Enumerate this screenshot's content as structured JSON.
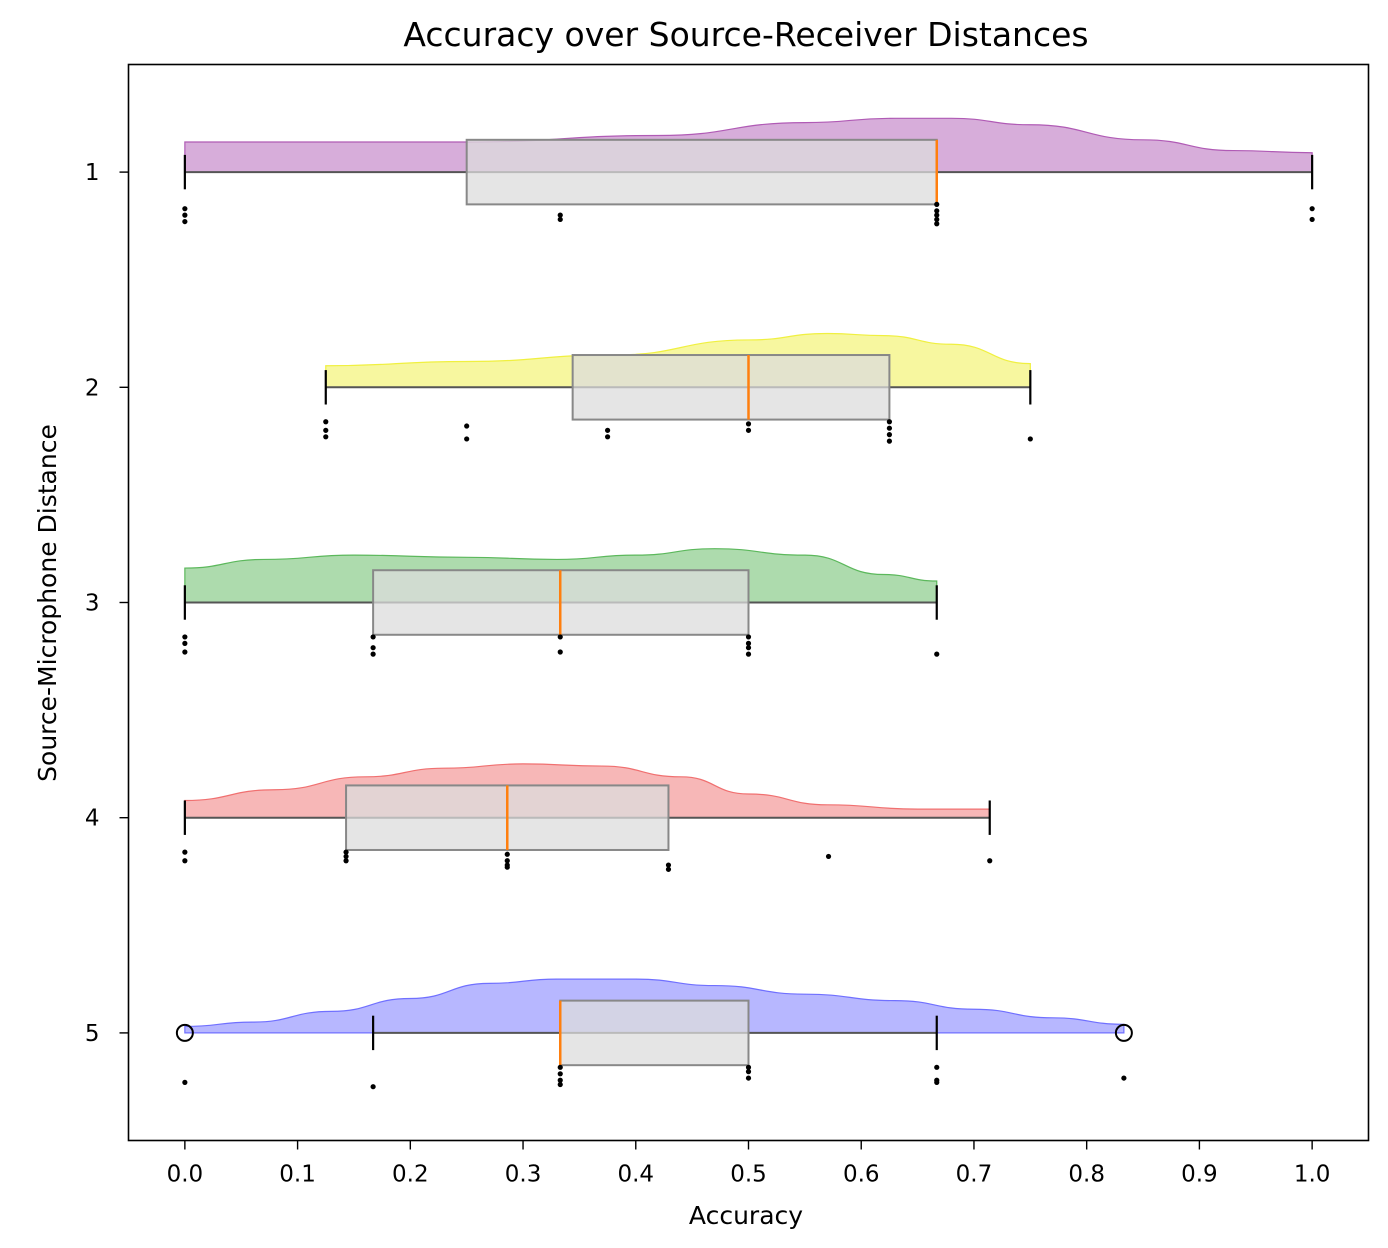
{
  "chart_data": {
    "type": "raincloud",
    "title": "Accuracy over Source-Receiver Distances",
    "xlabel": "Accuracy",
    "ylabel": "Source-Microphone Distance",
    "xlim": [
      -0.05,
      1.05
    ],
    "ylim": [
      5.5,
      0.5
    ],
    "x_ticks": [
      "0.0",
      "0.1",
      "0.2",
      "0.3",
      "0.4",
      "0.5",
      "0.6",
      "0.7",
      "0.8",
      "0.9",
      "1.0"
    ],
    "y_categories": [
      "1",
      "2",
      "3",
      "4",
      "5"
    ],
    "grid": false,
    "legend": "none",
    "box_color": "#dcdcdc",
    "median_color": "#ff7f0e",
    "series": [
      {
        "category": "1",
        "color": "#b05bb5",
        "box": {
          "q1": 0.25,
          "median": 0.667,
          "q3": 0.667,
          "whisker_low": 0.0,
          "whisker_high": 1.0
        },
        "fliers": [],
        "density": [
          [
            0.0,
            0.14
          ],
          [
            0.25,
            0.14
          ],
          [
            0.42,
            0.17
          ],
          [
            0.55,
            0.23
          ],
          [
            0.63,
            0.25
          ],
          [
            0.68,
            0.25
          ],
          [
            0.75,
            0.22
          ],
          [
            0.85,
            0.15
          ],
          [
            0.93,
            0.1
          ],
          [
            1.0,
            0.09
          ]
        ],
        "points": [
          [
            0.0,
            0.17
          ],
          [
            0.0,
            0.2
          ],
          [
            0.0,
            0.23
          ],
          [
            0.333,
            0.2
          ],
          [
            0.333,
            0.22
          ],
          [
            0.667,
            0.15
          ],
          [
            0.667,
            0.18
          ],
          [
            0.667,
            0.2
          ],
          [
            0.667,
            0.22
          ],
          [
            0.667,
            0.24
          ],
          [
            1.0,
            0.17
          ],
          [
            1.0,
            0.22
          ]
        ]
      },
      {
        "category": "2",
        "color": "#f0f040",
        "box": {
          "q1": 0.344,
          "median": 0.5,
          "q3": 0.625,
          "whisker_low": 0.125,
          "whisker_high": 0.75
        },
        "fliers": [],
        "density": [
          [
            0.125,
            0.1
          ],
          [
            0.25,
            0.12
          ],
          [
            0.38,
            0.15
          ],
          [
            0.5,
            0.22
          ],
          [
            0.57,
            0.25
          ],
          [
            0.62,
            0.24
          ],
          [
            0.68,
            0.2
          ],
          [
            0.75,
            0.11
          ]
        ],
        "points": [
          [
            0.125,
            0.16
          ],
          [
            0.125,
            0.2
          ],
          [
            0.125,
            0.23
          ],
          [
            0.25,
            0.18
          ],
          [
            0.25,
            0.24
          ],
          [
            0.375,
            0.2
          ],
          [
            0.375,
            0.23
          ],
          [
            0.5,
            0.17
          ],
          [
            0.5,
            0.2
          ],
          [
            0.625,
            0.16
          ],
          [
            0.625,
            0.19
          ],
          [
            0.625,
            0.22
          ],
          [
            0.625,
            0.25
          ],
          [
            0.75,
            0.24
          ]
        ]
      },
      {
        "category": "3",
        "color": "#5cb85c",
        "box": {
          "q1": 0.167,
          "median": 0.333,
          "q3": 0.5,
          "whisker_low": 0.0,
          "whisker_high": 0.667
        },
        "fliers": [],
        "density": [
          [
            0.0,
            0.16
          ],
          [
            0.07,
            0.2
          ],
          [
            0.15,
            0.22
          ],
          [
            0.25,
            0.21
          ],
          [
            0.33,
            0.2
          ],
          [
            0.4,
            0.22
          ],
          [
            0.47,
            0.25
          ],
          [
            0.55,
            0.22
          ],
          [
            0.62,
            0.13
          ],
          [
            0.667,
            0.1
          ]
        ],
        "points": [
          [
            0.0,
            0.16
          ],
          [
            0.0,
            0.19
          ],
          [
            0.0,
            0.23
          ],
          [
            0.167,
            0.16
          ],
          [
            0.167,
            0.21
          ],
          [
            0.167,
            0.24
          ],
          [
            0.333,
            0.16
          ],
          [
            0.333,
            0.23
          ],
          [
            0.5,
            0.16
          ],
          [
            0.5,
            0.19
          ],
          [
            0.5,
            0.21
          ],
          [
            0.5,
            0.24
          ],
          [
            0.667,
            0.24
          ]
        ]
      },
      {
        "category": "4",
        "color": "#f07070",
        "box": {
          "q1": 0.143,
          "median": 0.286,
          "q3": 0.429,
          "whisker_low": 0.0,
          "whisker_high": 0.714
        },
        "fliers": [],
        "density": [
          [
            0.0,
            0.08
          ],
          [
            0.08,
            0.13
          ],
          [
            0.16,
            0.19
          ],
          [
            0.23,
            0.23
          ],
          [
            0.3,
            0.25
          ],
          [
            0.37,
            0.24
          ],
          [
            0.44,
            0.19
          ],
          [
            0.5,
            0.11
          ],
          [
            0.57,
            0.06
          ],
          [
            0.65,
            0.04
          ],
          [
            0.714,
            0.04
          ]
        ],
        "points": [
          [
            0.0,
            0.16
          ],
          [
            0.0,
            0.2
          ],
          [
            0.143,
            0.16
          ],
          [
            0.143,
            0.18
          ],
          [
            0.143,
            0.2
          ],
          [
            0.286,
            0.17
          ],
          [
            0.286,
            0.2
          ],
          [
            0.286,
            0.22
          ],
          [
            0.286,
            0.23
          ],
          [
            0.429,
            0.22
          ],
          [
            0.429,
            0.24
          ],
          [
            0.571,
            0.18
          ],
          [
            0.714,
            0.2
          ]
        ]
      },
      {
        "category": "5",
        "color": "#7070ff",
        "box": {
          "q1": 0.333,
          "median": 0.333,
          "q3": 0.5,
          "whisker_low": 0.167,
          "whisker_high": 0.667
        },
        "fliers": [
          0.0,
          0.833
        ],
        "density": [
          [
            0.0,
            0.03
          ],
          [
            0.06,
            0.05
          ],
          [
            0.13,
            0.1
          ],
          [
            0.2,
            0.16
          ],
          [
            0.27,
            0.23
          ],
          [
            0.33,
            0.25
          ],
          [
            0.4,
            0.25
          ],
          [
            0.47,
            0.22
          ],
          [
            0.55,
            0.18
          ],
          [
            0.63,
            0.15
          ],
          [
            0.7,
            0.11
          ],
          [
            0.77,
            0.07
          ],
          [
            0.833,
            0.04
          ]
        ],
        "points": [
          [
            0.0,
            0.23
          ],
          [
            0.167,
            0.25
          ],
          [
            0.333,
            0.16
          ],
          [
            0.333,
            0.19
          ],
          [
            0.333,
            0.22
          ],
          [
            0.333,
            0.24
          ],
          [
            0.5,
            0.16
          ],
          [
            0.5,
            0.18
          ],
          [
            0.5,
            0.21
          ],
          [
            0.667,
            0.16
          ],
          [
            0.667,
            0.22
          ],
          [
            0.667,
            0.23
          ],
          [
            0.833,
            0.21
          ]
        ]
      }
    ]
  }
}
